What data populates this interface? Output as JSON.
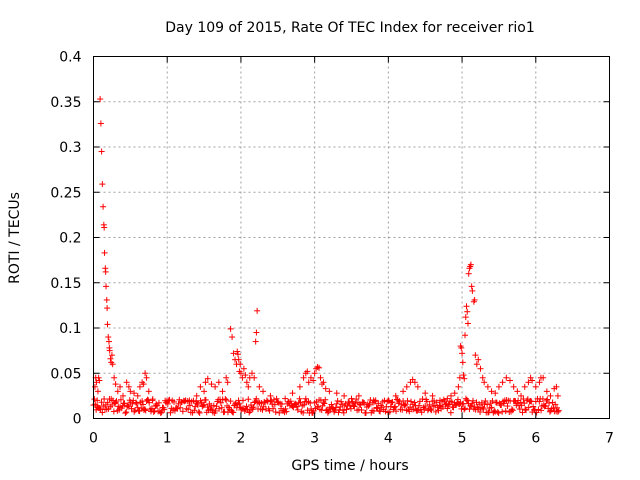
{
  "chart_data": {
    "type": "scatter",
    "title": "Day 109 of 2015, Rate Of TEC Index for receiver rio1",
    "xlabel": "GPS time / hours",
    "ylabel": "ROTI / TECUs",
    "xlim": [
      0,
      7
    ],
    "ylim": [
      0,
      0.4
    ],
    "xticks": [
      "0",
      "1",
      "2",
      "3",
      "4",
      "5",
      "6",
      "7"
    ],
    "yticks": [
      "0",
      "0.05",
      "0.1",
      "0.15",
      "0.2",
      "0.25",
      "0.3",
      "0.35",
      "0.4"
    ],
    "grid": true,
    "marker": "+",
    "color": "#ff0000",
    "series": [
      {
        "name": "ROTI",
        "points": [
          [
            0.02,
            0.035
          ],
          [
            0.03,
            0.045
          ],
          [
            0.04,
            0.04
          ],
          [
            0.05,
            0.02
          ],
          [
            0.06,
            0.03
          ],
          [
            0.07,
            0.045
          ],
          [
            0.08,
            0.042
          ],
          [
            0.09,
            0.353
          ],
          [
            0.1,
            0.326
          ],
          [
            0.11,
            0.295
          ],
          [
            0.12,
            0.259
          ],
          [
            0.13,
            0.234
          ],
          [
            0.14,
            0.214
          ],
          [
            0.145,
            0.211
          ],
          [
            0.15,
            0.183
          ],
          [
            0.16,
            0.166
          ],
          [
            0.165,
            0.162
          ],
          [
            0.17,
            0.146
          ],
          [
            0.18,
            0.131
          ],
          [
            0.185,
            0.122
          ],
          [
            0.19,
            0.104
          ],
          [
            0.2,
            0.09
          ],
          [
            0.21,
            0.085
          ],
          [
            0.215,
            0.078
          ],
          [
            0.22,
            0.075
          ],
          [
            0.23,
            0.066
          ],
          [
            0.24,
            0.062
          ],
          [
            0.25,
            0.07
          ],
          [
            0.26,
            0.06
          ],
          [
            0.28,
            0.045
          ],
          [
            0.3,
            0.038
          ],
          [
            0.33,
            0.03
          ],
          [
            0.36,
            0.035
          ],
          [
            0.4,
            0.025
          ],
          [
            0.45,
            0.04
          ],
          [
            0.48,
            0.035
          ],
          [
            0.5,
            0.03
          ],
          [
            0.55,
            0.028
          ],
          [
            0.6,
            0.025
          ],
          [
            0.63,
            0.035
          ],
          [
            0.66,
            0.04
          ],
          [
            0.68,
            0.038
          ],
          [
            0.7,
            0.05
          ],
          [
            0.72,
            0.045
          ],
          [
            0.75,
            0.03
          ],
          [
            0.8,
            0.02
          ],
          [
            0.85,
            0.016
          ],
          [
            1.3,
            0.02
          ],
          [
            1.4,
            0.025
          ],
          [
            1.45,
            0.035
          ],
          [
            1.5,
            0.03
          ],
          [
            1.52,
            0.04
          ],
          [
            1.55,
            0.044
          ],
          [
            1.6,
            0.038
          ],
          [
            1.65,
            0.035
          ],
          [
            1.7,
            0.04
          ],
          [
            1.75,
            0.03
          ],
          [
            1.8,
            0.045
          ],
          [
            1.82,
            0.04
          ],
          [
            1.86,
            0.099
          ],
          [
            1.88,
            0.09
          ],
          [
            1.9,
            0.072
          ],
          [
            1.92,
            0.065
          ],
          [
            1.94,
            0.06
          ],
          [
            1.95,
            0.074
          ],
          [
            1.96,
            0.071
          ],
          [
            1.97,
            0.065
          ],
          [
            1.98,
            0.052
          ],
          [
            1.99,
            0.06
          ],
          [
            2.0,
            0.05
          ],
          [
            2.02,
            0.045
          ],
          [
            2.04,
            0.055
          ],
          [
            2.06,
            0.048
          ],
          [
            2.08,
            0.04
          ],
          [
            2.1,
            0.035
          ],
          [
            2.12,
            0.045
          ],
          [
            2.15,
            0.05
          ],
          [
            2.18,
            0.045
          ],
          [
            2.2,
            0.085
          ],
          [
            2.21,
            0.095
          ],
          [
            2.22,
            0.119
          ],
          [
            2.25,
            0.035
          ],
          [
            2.3,
            0.03
          ],
          [
            2.4,
            0.025
          ],
          [
            2.6,
            0.022
          ],
          [
            2.7,
            0.028
          ],
          [
            2.8,
            0.035
          ],
          [
            2.85,
            0.045
          ],
          [
            2.88,
            0.05
          ],
          [
            2.9,
            0.052
          ],
          [
            2.92,
            0.04
          ],
          [
            2.95,
            0.045
          ],
          [
            2.98,
            0.042
          ],
          [
            3.0,
            0.05
          ],
          [
            3.02,
            0.055
          ],
          [
            3.04,
            0.057
          ],
          [
            3.06,
            0.056
          ],
          [
            3.08,
            0.045
          ],
          [
            3.1,
            0.038
          ],
          [
            3.12,
            0.04
          ],
          [
            3.15,
            0.033
          ],
          [
            3.2,
            0.03
          ],
          [
            3.3,
            0.028
          ],
          [
            3.4,
            0.025
          ],
          [
            3.5,
            0.022
          ],
          [
            3.6,
            0.025
          ],
          [
            3.8,
            0.02
          ],
          [
            4.0,
            0.02
          ],
          [
            4.1,
            0.025
          ],
          [
            4.2,
            0.03
          ],
          [
            4.25,
            0.035
          ],
          [
            4.3,
            0.04
          ],
          [
            4.33,
            0.043
          ],
          [
            4.36,
            0.04
          ],
          [
            4.4,
            0.035
          ],
          [
            4.5,
            0.028
          ],
          [
            4.6,
            0.025
          ],
          [
            4.7,
            0.02
          ],
          [
            4.8,
            0.022
          ],
          [
            4.85,
            0.025
          ],
          [
            4.9,
            0.028
          ],
          [
            4.95,
            0.035
          ],
          [
            4.97,
            0.045
          ],
          [
            4.98,
            0.08
          ],
          [
            4.99,
            0.078
          ],
          [
            5.0,
            0.072
          ],
          [
            5.01,
            0.062
          ],
          [
            5.02,
            0.048
          ],
          [
            5.03,
            0.044
          ],
          [
            5.04,
            0.092
          ],
          [
            5.05,
            0.112
          ],
          [
            5.06,
            0.124
          ],
          [
            5.07,
            0.118
          ],
          [
            5.08,
            0.105
          ],
          [
            5.09,
            0.16
          ],
          [
            5.1,
            0.166
          ],
          [
            5.11,
            0.168
          ],
          [
            5.12,
            0.17
          ],
          [
            5.13,
            0.146
          ],
          [
            5.14,
            0.141
          ],
          [
            5.16,
            0.129
          ],
          [
            5.17,
            0.131
          ],
          [
            5.18,
            0.07
          ],
          [
            5.2,
            0.06
          ],
          [
            5.22,
            0.065
          ],
          [
            5.25,
            0.055
          ],
          [
            5.28,
            0.045
          ],
          [
            5.3,
            0.04
          ],
          [
            5.35,
            0.035
          ],
          [
            5.4,
            0.03
          ],
          [
            5.45,
            0.028
          ],
          [
            5.5,
            0.035
          ],
          [
            5.55,
            0.04
          ],
          [
            5.6,
            0.045
          ],
          [
            5.65,
            0.042
          ],
          [
            5.7,
            0.035
          ],
          [
            5.75,
            0.03
          ],
          [
            5.8,
            0.025
          ],
          [
            5.85,
            0.035
          ],
          [
            5.9,
            0.04
          ],
          [
            5.93,
            0.045
          ],
          [
            5.95,
            0.042
          ],
          [
            6.0,
            0.035
          ],
          [
            6.05,
            0.04
          ],
          [
            6.07,
            0.045
          ],
          [
            6.1,
            0.045
          ],
          [
            6.15,
            0.03
          ],
          [
            6.2,
            0.025
          ],
          [
            6.25,
            0.033
          ],
          [
            6.28,
            0.035
          ],
          [
            6.3,
            0.025
          ]
        ]
      }
    ]
  }
}
